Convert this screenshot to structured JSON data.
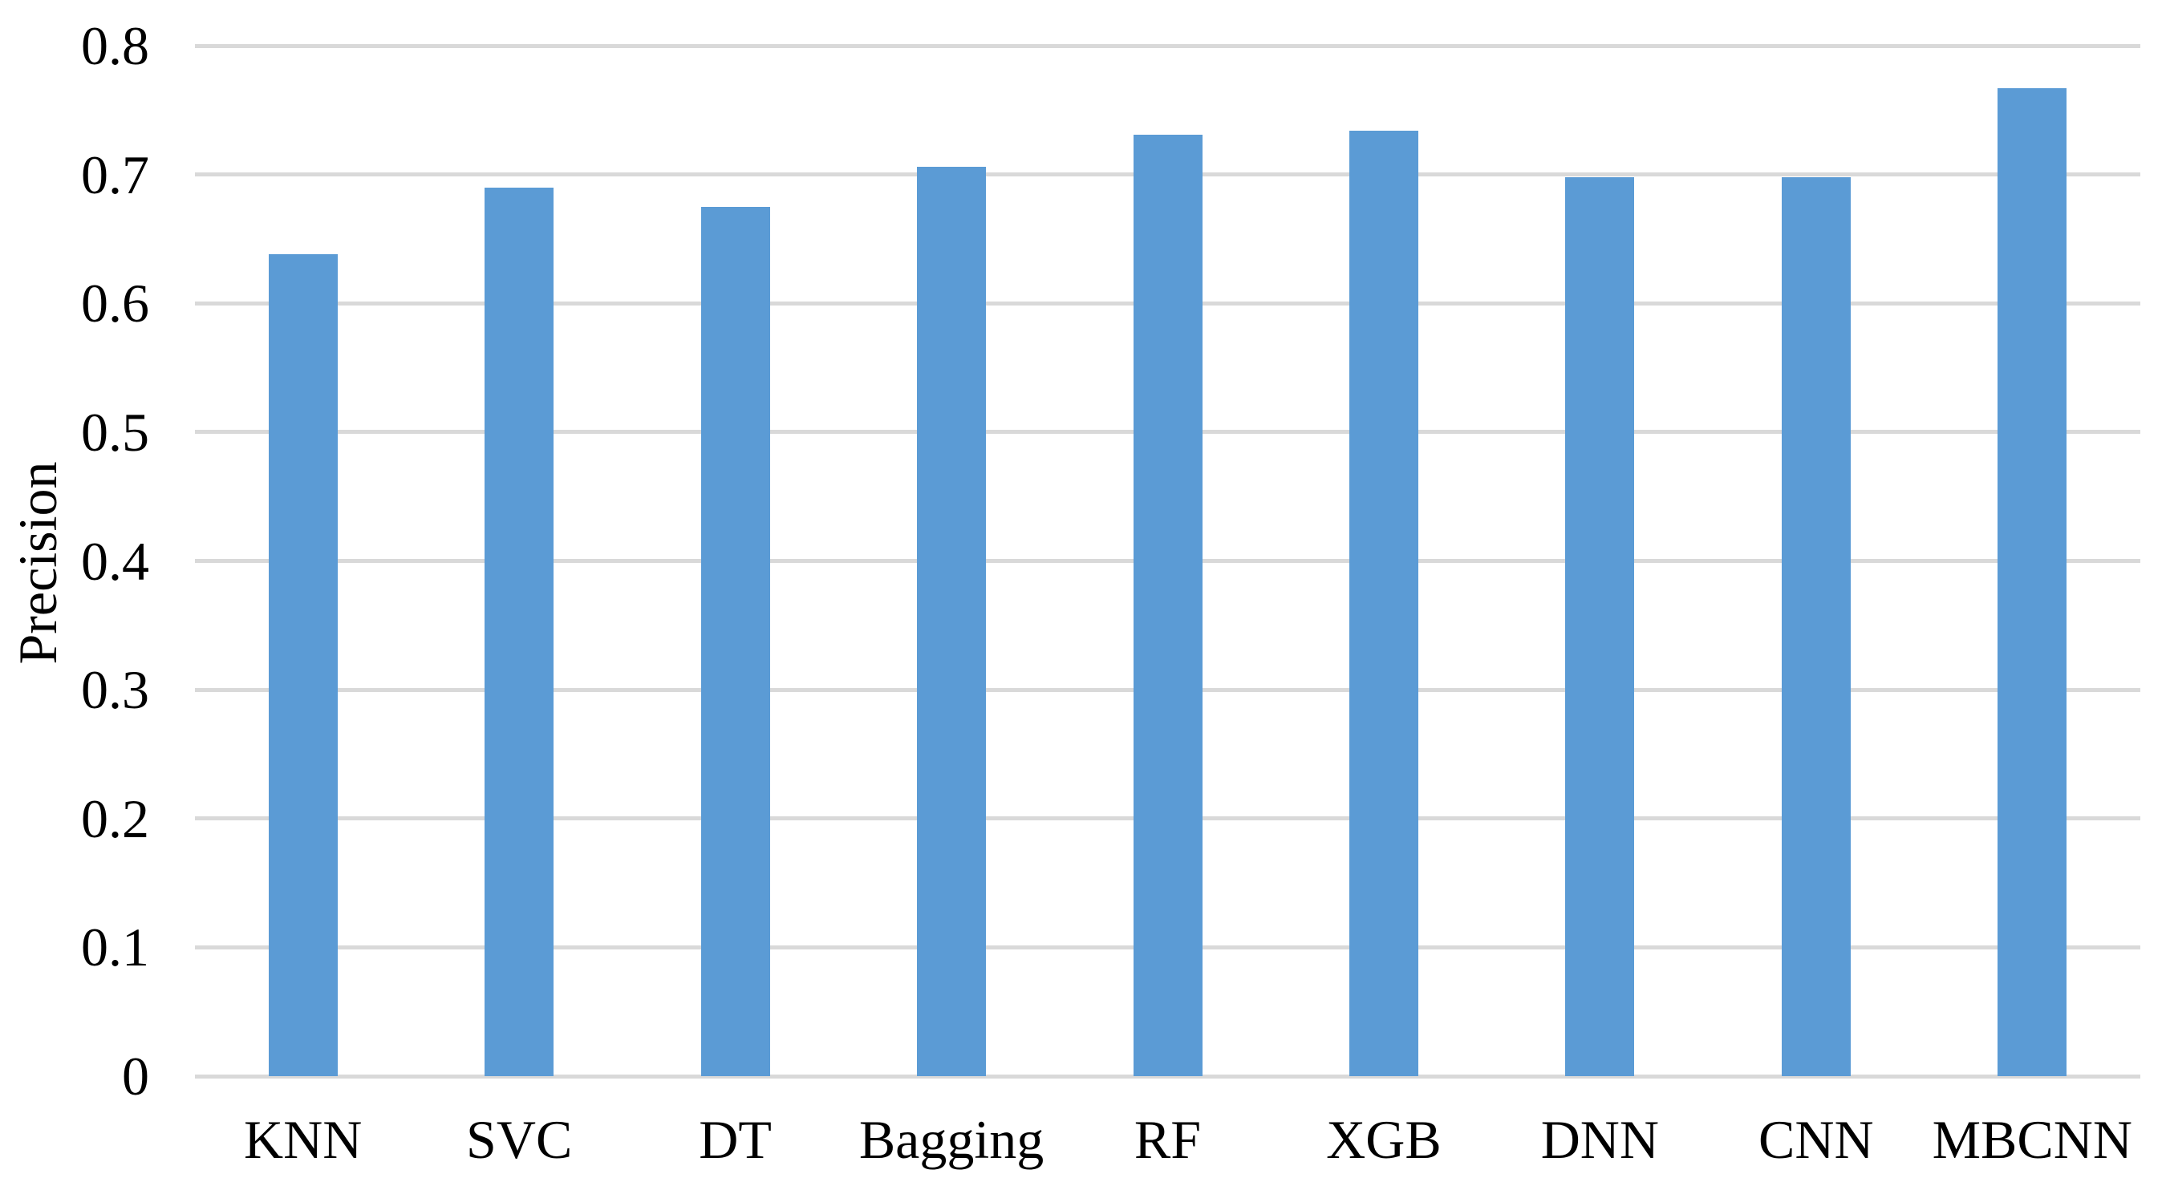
{
  "figure": {
    "background_color": "#ffffff",
    "bar_color": "#5B9BD5",
    "gridline_color": "#D9D9D9",
    "text_color": "#000000"
  },
  "chart_data": {
    "type": "bar",
    "categories": [
      "KNN",
      "SVC",
      "DT",
      "Bagging",
      "RF",
      "XGB",
      "DNN",
      "CNN",
      "MBCNN"
    ],
    "values": [
      0.638,
      0.69,
      0.675,
      0.706,
      0.731,
      0.734,
      0.698,
      0.698,
      0.767
    ],
    "title": "",
    "xlabel": "",
    "ylabel": "Precision",
    "ylim": [
      0,
      0.8
    ],
    "ytick_labels": [
      "0",
      "0.1",
      "0.2",
      "0.3",
      "0.4",
      "0.5",
      "0.6",
      "0.7",
      "0.8"
    ],
    "grid": true,
    "legend": false
  }
}
